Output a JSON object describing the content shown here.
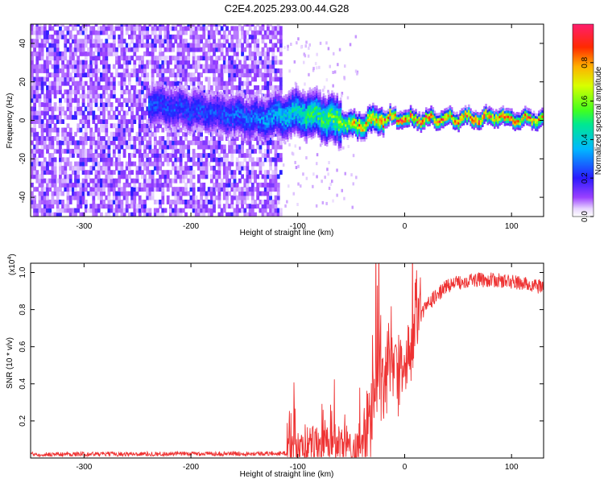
{
  "title": "C2E4.2025.293.00.44.G28",
  "chart_data": [
    {
      "type": "heatmap",
      "xlabel": "Height of straight line (km)",
      "ylabel": "Frequency (Hz)",
      "xlim": [
        -350,
        130
      ],
      "ylim": [
        -50,
        50
      ],
      "xticks": [
        -300,
        -200,
        -100,
        0,
        100
      ],
      "yticks": [
        -40,
        -20,
        0,
        20,
        40
      ],
      "noise_region_x": [
        -350,
        -115
      ],
      "colorbar": {
        "label": "Normalized spectral amplitude",
        "ticks": [
          "0.0",
          "0.2",
          "0.4",
          "0.6",
          "0.8"
        ],
        "range": [
          0,
          1
        ]
      },
      "ridge": [
        {
          "x": -240,
          "f": 8,
          "a": 0.25
        },
        {
          "x": -175,
          "f": 3,
          "a": 0.25
        },
        {
          "x": -140,
          "f": 0,
          "a": 0.3
        },
        {
          "x": -120,
          "f": 2,
          "a": 0.35
        },
        {
          "x": -100,
          "f": 3,
          "a": 0.45
        },
        {
          "x": -80,
          "f": 2,
          "a": 0.5
        },
        {
          "x": -60,
          "f": -2,
          "a": 0.6
        },
        {
          "x": -45,
          "f": -3,
          "a": 0.75
        },
        {
          "x": -30,
          "f": -1,
          "a": 0.8
        },
        {
          "x": -15,
          "f": 1,
          "a": 0.85
        },
        {
          "x": 0,
          "f": 0,
          "a": 0.9
        },
        {
          "x": 40,
          "f": 0,
          "a": 0.85
        },
        {
          "x": 80,
          "f": 1,
          "a": 0.9
        },
        {
          "x": 110,
          "f": 0,
          "a": 0.8
        },
        {
          "x": 130,
          "f": 0,
          "a": 0.8
        }
      ]
    },
    {
      "type": "line",
      "xlabel": "Height of straight line (km)",
      "ylabel": "SNR (10 * v/v)",
      "yscale_note": "(x10",
      "yscale_exp": "4",
      "xlim": [
        -350,
        130
      ],
      "ylim": [
        0,
        1.05
      ],
      "xticks": [
        -300,
        -200,
        -100,
        0,
        100
      ],
      "yticks": [
        0.2,
        0.4,
        0.6,
        0.8,
        1.0
      ],
      "ytick_labels": [
        "0.2",
        "0.4",
        "0.6",
        "0.8",
        "1.0"
      ],
      "series": [
        {
          "color": "#ee3333",
          "trend": [
            {
              "x": -350,
              "y": 0.02
            },
            {
              "x": -110,
              "y": 0.025
            },
            {
              "x": -100,
              "y": 0.05
            },
            {
              "x": -80,
              "y": 0.08
            },
            {
              "x": -60,
              "y": 0.06
            },
            {
              "x": -50,
              "y": 0.04
            },
            {
              "x": -40,
              "y": 0.08
            },
            {
              "x": -30,
              "y": 0.3
            },
            {
              "x": -20,
              "y": 0.45
            },
            {
              "x": -10,
              "y": 0.5
            },
            {
              "x": 0,
              "y": 0.5
            },
            {
              "x": 10,
              "y": 0.7
            },
            {
              "x": 20,
              "y": 0.82
            },
            {
              "x": 40,
              "y": 0.93
            },
            {
              "x": 60,
              "y": 0.96
            },
            {
              "x": 80,
              "y": 0.96
            },
            {
              "x": 100,
              "y": 0.95
            },
            {
              "x": 130,
              "y": 0.92
            }
          ]
        }
      ]
    }
  ]
}
